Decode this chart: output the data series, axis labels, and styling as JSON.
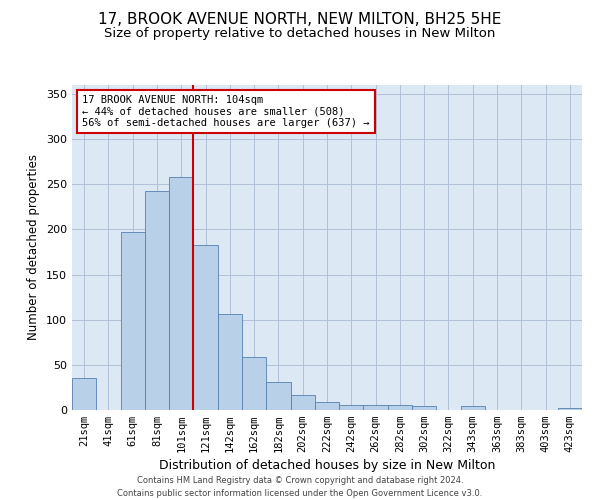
{
  "title1": "17, BROOK AVENUE NORTH, NEW MILTON, BH25 5HE",
  "title2": "Size of property relative to detached houses in New Milton",
  "xlabel": "Distribution of detached houses by size in New Milton",
  "ylabel": "Number of detached properties",
  "categories": [
    "21sqm",
    "41sqm",
    "61sqm",
    "81sqm",
    "101sqm",
    "121sqm",
    "142sqm",
    "162sqm",
    "182sqm",
    "202sqm",
    "222sqm",
    "242sqm",
    "262sqm",
    "282sqm",
    "302sqm",
    "322sqm",
    "343sqm",
    "363sqm",
    "383sqm",
    "403sqm",
    "423sqm"
  ],
  "values": [
    35,
    0,
    197,
    243,
    258,
    183,
    106,
    59,
    31,
    17,
    9,
    5,
    6,
    5,
    4,
    0,
    4,
    0,
    0,
    0,
    2
  ],
  "bar_color": "#b8d0e8",
  "bar_edge_color": "#5580b0",
  "vline_color": "#cc0000",
  "annotation_text": "17 BROOK AVENUE NORTH: 104sqm\n← 44% of detached houses are smaller (508)\n56% of semi-detached houses are larger (637) →",
  "annotation_box_color": "#ffffff",
  "annotation_box_edge": "#cc0000",
  "background_color": "#ffffff",
  "plot_bg_color": "#dde8f5",
  "grid_color": "#b0c0d8",
  "footer1": "Contains HM Land Registry data © Crown copyright and database right 2024.",
  "footer2": "Contains public sector information licensed under the Open Government Licence v3.0.",
  "ylim": [
    0,
    360
  ],
  "yticks": [
    0,
    50,
    100,
    150,
    200,
    250,
    300,
    350
  ],
  "title1_fontsize": 11,
  "title2_fontsize": 9.5,
  "ylabel_fontsize": 8.5,
  "xlabel_fontsize": 9,
  "tick_fontsize": 7.5,
  "footer_fontsize": 6,
  "annot_fontsize": 7.5
}
